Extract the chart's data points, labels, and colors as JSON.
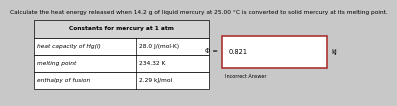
{
  "title": "Calculate the heat energy released when 14.2 g of liquid mercury at 25.00 °C is converted to solid mercury at its melting point.",
  "table_title": "Constants for mercury at 1 atm",
  "table_rows": [
    [
      "heat capacity of Hg(l)",
      "28.0 J/(mol·K)"
    ],
    [
      "melting point",
      "234.32 K"
    ],
    [
      "enthalpy of fusion",
      "2.29 kJ/mol"
    ]
  ],
  "phi_label": "Φ =",
  "answer_value": "0.821",
  "answer_label": "kJ",
  "incorrect_label": "Incorrect Answer",
  "bg_color": "#c8c8c8",
  "answer_box_border": "#aa3333",
  "title_fontsize": 4.2,
  "table_fontsize": 4.2,
  "answer_fontsize": 4.8,
  "incorrect_fontsize": 3.5
}
